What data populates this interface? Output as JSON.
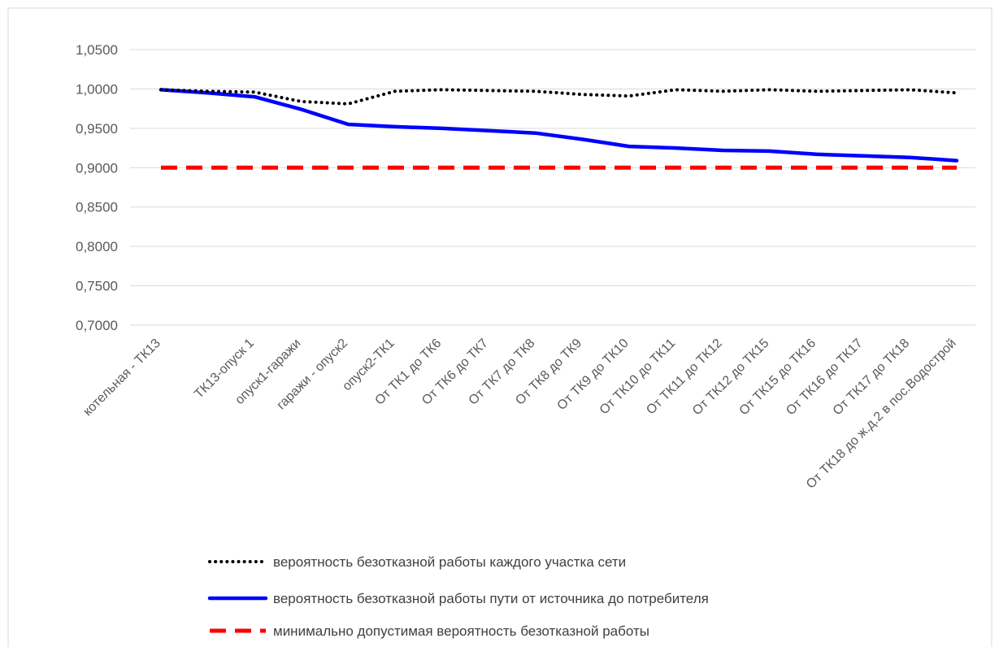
{
  "chart_data": {
    "type": "line",
    "title": "",
    "xlabel": "",
    "ylabel": "",
    "ylim": [
      0.7,
      1.05
    ],
    "y_ticks": [
      "0,7000",
      "0,7500",
      "0,8000",
      "0,8500",
      "0,9000",
      "0,9500",
      "1,0000",
      "1,0500"
    ],
    "grid": true,
    "legend_position": "bottom",
    "categories": [
      "котельная - ТК13",
      "",
      "ТК13-опуск 1",
      "опуск1-гаражи",
      "гаражи - опуск2",
      "опуск2-ТК1",
      "От ТК1 до ТК6",
      "От ТК6 до ТК7",
      "От ТК7 до ТК8",
      "От ТК8 до ТК9",
      "От ТК9 до ТК10",
      "От ТК10 до ТК11",
      "От ТК11 до ТК12",
      "От ТК12 до ТК15",
      "От ТК15 до ТК16",
      "От ТК16 до ТК17",
      "От ТК17 до ТК18",
      "От ТК18 до ж.д.2 в пос.Водострой"
    ],
    "series": [
      {
        "name": "вероятность безотказной работы каждого участка сети",
        "color": "#000000",
        "style": "dotted",
        "values": [
          0.999,
          0.997,
          0.996,
          0.984,
          0.981,
          0.997,
          0.999,
          0.998,
          0.997,
          0.993,
          0.991,
          0.999,
          0.997,
          0.999,
          0.997,
          0.998,
          0.999,
          0.995
        ]
      },
      {
        "name": "вероятность безотказной работы пути от источника до потребителя",
        "color": "#0000ff",
        "style": "solid",
        "values": [
          0.999,
          0.995,
          0.99,
          0.974,
          0.955,
          0.952,
          0.95,
          0.947,
          0.944,
          0.936,
          0.927,
          0.925,
          0.922,
          0.921,
          0.917,
          0.915,
          0.913,
          0.909
        ]
      },
      {
        "name": "минимально допустимая вероятность безотказной работы",
        "color": "#ff0000",
        "style": "dashed",
        "values": [
          0.9,
          0.9,
          0.9,
          0.9,
          0.9,
          0.9,
          0.9,
          0.9,
          0.9,
          0.9,
          0.9,
          0.9,
          0.9,
          0.9,
          0.9,
          0.9,
          0.9,
          0.9
        ]
      }
    ]
  }
}
